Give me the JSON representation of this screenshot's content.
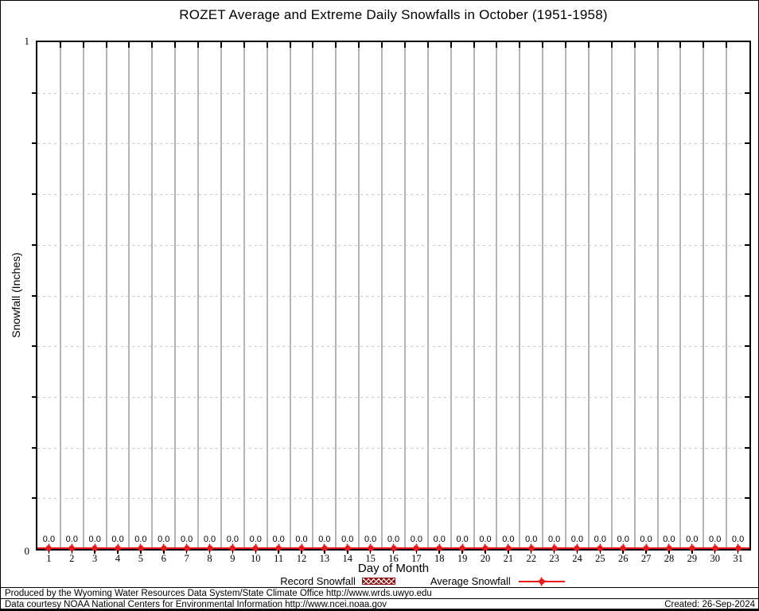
{
  "title": "ROZET Average and Extreme Daily Snowfalls in October (1951-1958)",
  "y_axis": {
    "label": "Snowfall (Inches)",
    "top_tick": "1",
    "bottom_tick": "0"
  },
  "x_axis": {
    "label": "Day of Month"
  },
  "legend": {
    "record_label": "Record Snowfall",
    "average_label": "Average Snowfall"
  },
  "footer": {
    "line1": "Produced by the Wyoming Water Resources Data System/State Climate Office http://www.wrds.uwyo.edu",
    "line2": "Data courtesy NOAA National Centers for Environmental Information http://www.ncei.noaa.gov",
    "created": "Created: 26-Sep-2024"
  },
  "colors": {
    "series_red": "#e8191d",
    "record_fill": "#8b1414",
    "grid_gray": "#b4b4b4",
    "dash_gray": "#c9c9c9"
  },
  "chart_data": {
    "type": "line",
    "title": "ROZET Average and Extreme Daily Snowfalls in October (1951-1958)",
    "xlabel": "Day of Month",
    "ylabel": "Snowfall (Inches)",
    "x": [
      1,
      2,
      3,
      4,
      5,
      6,
      7,
      8,
      9,
      10,
      11,
      12,
      13,
      14,
      15,
      16,
      17,
      18,
      19,
      20,
      21,
      22,
      23,
      24,
      25,
      26,
      27,
      28,
      29,
      30,
      31
    ],
    "ylim": [
      0,
      1
    ],
    "ytick_labels_shown": [
      "0",
      "1"
    ],
    "minor_ytick_interval": 0.1,
    "grid": true,
    "legend_position": "bottom",
    "series": [
      {
        "name": "Record Snowfall",
        "values": [
          0,
          0,
          0,
          0,
          0,
          0,
          0,
          0,
          0,
          0,
          0,
          0,
          0,
          0,
          0,
          0,
          0,
          0,
          0,
          0,
          0,
          0,
          0,
          0,
          0,
          0,
          0,
          0,
          0,
          0,
          0
        ]
      },
      {
        "name": "Average Snowfall",
        "values": [
          0,
          0,
          0,
          0,
          0,
          0,
          0,
          0,
          0,
          0,
          0,
          0,
          0,
          0,
          0,
          0,
          0,
          0,
          0,
          0,
          0,
          0,
          0,
          0,
          0,
          0,
          0,
          0,
          0,
          0,
          0
        ]
      }
    ],
    "point_labels": [
      "0.0",
      "0.0",
      "0.0",
      "0.0",
      "0.0",
      "0.0",
      "0.0",
      "0.0",
      "0.0",
      "0.0",
      "0.0",
      "0.0",
      "0.0",
      "0.0",
      "0.0",
      "0.0",
      "0.0",
      "0.0",
      "0.0",
      "0.0",
      "0.0",
      "0.0",
      "0.0",
      "0.0",
      "0.0",
      "0.0",
      "0.0",
      "0.0",
      "0.0",
      "0.0",
      "0.0"
    ]
  }
}
